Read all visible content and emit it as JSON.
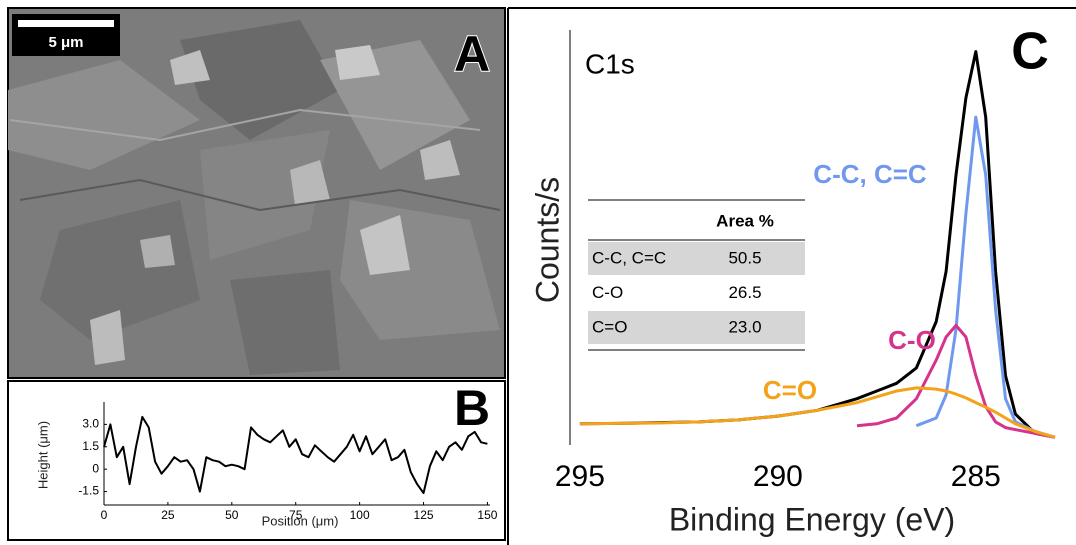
{
  "panel_labels": [
    "A",
    "B",
    "C"
  ],
  "scale_bar": "5 μm",
  "chart_data": [
    {
      "type": "line",
      "xlabel": "Position (μm)",
      "ylabel": "Height (μm)",
      "xlim": [
        0,
        151
      ],
      "ylim": [
        -2.4,
        4.5
      ],
      "xticks": [
        0,
        25,
        50,
        75,
        100,
        125,
        150
      ],
      "yticks": [
        -1.5,
        0,
        1.5,
        {
          "value": 3,
          "label": "3.0"
        }
      ],
      "x": [
        0,
        2.5,
        5,
        7.5,
        10,
        12.5,
        15,
        17.5,
        20,
        22.5,
        25,
        27.5,
        30,
        32.5,
        35,
        37.5,
        40,
        42.5,
        45,
        47.5,
        50,
        52.5,
        55,
        57.5,
        60,
        62.5,
        65,
        67.5,
        70,
        72.5,
        75,
        77.5,
        80,
        82.5,
        85,
        87.5,
        90,
        92.5,
        95,
        97.5,
        100,
        102.5,
        105,
        107.5,
        110,
        112.5,
        115,
        117.5,
        120,
        122.5,
        125,
        127.5,
        130,
        132.5,
        135,
        137.5,
        140,
        142.5,
        145,
        147.5,
        150
      ],
      "series": [
        {
          "color": "#000000",
          "values": [
            1.5,
            3.0,
            0.8,
            1.5,
            -1.0,
            1.5,
            3.5,
            2.8,
            0.5,
            -0.3,
            0.2,
            0.8,
            0.5,
            0.6,
            0.0,
            -1.5,
            0.8,
            0.6,
            0.5,
            0.2,
            0.3,
            0.2,
            0.0,
            2.8,
            2.3,
            2.0,
            1.8,
            2.2,
            2.6,
            1.5,
            2.0,
            1.0,
            0.8,
            1.6,
            1.2,
            0.8,
            0.5,
            1.0,
            1.5,
            2.3,
            1.2,
            2.2,
            1.0,
            1.5,
            2.0,
            0.6,
            0.8,
            1.3,
            -0.2,
            -1.0,
            -1.6,
            0.2,
            1.2,
            0.6,
            1.5,
            1.8,
            1.3,
            2.2,
            2.5,
            1.8,
            1.7
          ]
        }
      ]
    },
    {
      "type": "line",
      "title": "C1s",
      "xlabel": "Binding Energy (eV)",
      "ylabel": "Counts/s",
      "xlim": [
        295.25,
        283
      ],
      "ylim": [
        0,
        1.05
      ],
      "xticks": [
        295,
        290,
        285
      ],
      "x": [
        295,
        294,
        293,
        292,
        291,
        290,
        289,
        288,
        287.5,
        287,
        286.5,
        286,
        285.75,
        285.5,
        285.25,
        285,
        284.75,
        284.5,
        284.25,
        284,
        283.5,
        283
      ],
      "series": [
        {
          "color": "#000000",
          "values": [
            0.055,
            0.056,
            0.058,
            0.06,
            0.065,
            0.075,
            0.09,
            0.12,
            0.14,
            0.16,
            0.2,
            0.32,
            0.45,
            0.7,
            0.9,
            1.02,
            0.85,
            0.45,
            0.18,
            0.08,
            0.03,
            0.02
          ]
        },
        {
          "name": "C-C, C=C",
          "color": "#6f98ee",
          "values": [
            null,
            null,
            null,
            null,
            null,
            null,
            null,
            null,
            null,
            null,
            0.05,
            0.07,
            0.13,
            0.3,
            0.6,
            0.85,
            0.7,
            0.35,
            0.12,
            0.06,
            0.035,
            0.02
          ]
        },
        {
          "name": "C-O",
          "color": "#d6338a",
          "values": [
            null,
            null,
            null,
            null,
            null,
            null,
            null,
            0.05,
            0.055,
            0.07,
            0.12,
            0.22,
            0.28,
            0.31,
            0.28,
            0.18,
            0.1,
            0.06,
            0.045,
            0.04,
            0.03,
            0.02
          ]
        },
        {
          "name": "C=O",
          "color": "#f5a21b",
          "values": [
            0.055,
            0.056,
            0.057,
            0.06,
            0.065,
            0.075,
            0.09,
            0.11,
            0.125,
            0.14,
            0.148,
            0.145,
            0.14,
            0.132,
            0.122,
            0.11,
            0.098,
            0.085,
            0.07,
            0.055,
            0.035,
            0.02
          ]
        }
      ],
      "table": {
        "header": "Area %",
        "rows": [
          [
            "C-C, C=C",
            "50.5"
          ],
          [
            "C-O",
            "26.5"
          ],
          [
            "C=O",
            "23.0"
          ]
        ]
      }
    }
  ]
}
